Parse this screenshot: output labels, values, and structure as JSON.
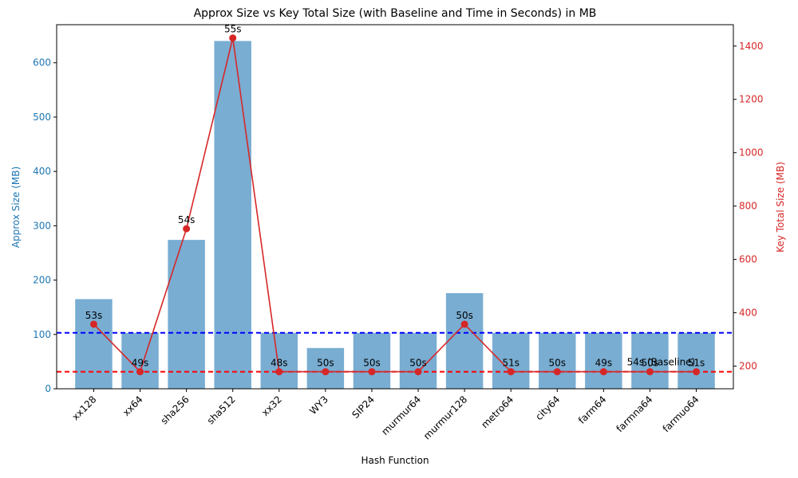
{
  "chart_data": {
    "type": "bar",
    "title": "Approx Size vs Key Total Size (with Baseline and Time in Seconds) in MB",
    "xlabel": "Hash Function",
    "ylabel_left": "Approx Size (MB)",
    "ylabel_right": "Key Total Size (MB)",
    "categories": [
      "xx128",
      "xx64",
      "sha256",
      "sha512",
      "xx32",
      "WY3",
      "SIP24",
      "murmur64",
      "murmur128",
      "metro64",
      "city64",
      "farm64",
      "farmna64",
      "farmuo64"
    ],
    "series": [
      {
        "axis": "left",
        "type": "bar",
        "values": [
          165,
          103,
          274,
          640,
          103,
          75,
          103,
          103,
          176,
          103,
          103,
          103,
          103,
          103
        ],
        "color": "#1f77b4"
      },
      {
        "axis": "right",
        "type": "line",
        "values": [
          357,
          179,
          715,
          1430,
          179,
          179,
          179,
          179,
          357,
          179,
          179,
          179,
          179,
          179
        ],
        "color": "#d62728",
        "labels": [
          "53s",
          "49s",
          "54s",
          "55s",
          "48s",
          "50s",
          "50s",
          "50s",
          "50s",
          "51s",
          "50s",
          "49s",
          "50s",
          "51s"
        ]
      }
    ],
    "baselines": [
      {
        "axis": "left",
        "value": 103,
        "color": "#0000ff"
      },
      {
        "axis": "right",
        "value": 179,
        "color": "#ff0000"
      }
    ],
    "annotation": {
      "text": "54s (Baseline)",
      "category": "farmna64",
      "value": 215
    },
    "ylim_left": [
      0,
      670
    ],
    "ylim_right": [
      115,
      1480
    ],
    "yticks_left": [
      0,
      100,
      200,
      300,
      400,
      500,
      600
    ],
    "yticks_right": [
      200,
      400,
      600,
      800,
      1000,
      1200,
      1400
    ],
    "colors": {
      "left_axis": "#1f77b4",
      "right_axis": "#d62728"
    }
  }
}
